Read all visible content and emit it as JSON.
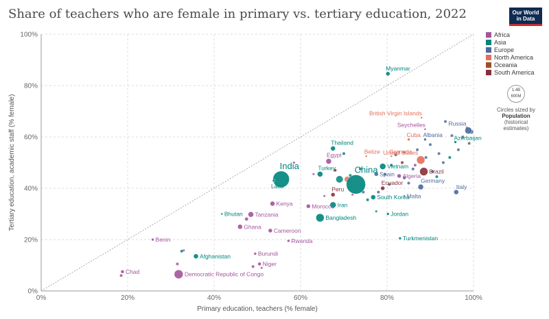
{
  "header": {
    "title": "Share of teachers who are female in primary vs. tertiary education, 2022",
    "logo_line1": "Our World",
    "logo_line2": "in Data"
  },
  "legend": {
    "items": [
      {
        "label": "Africa",
        "color": "#a2559c"
      },
      {
        "label": "Asia",
        "color": "#00847e"
      },
      {
        "label": "Europe",
        "color": "#4c6a9c"
      },
      {
        "label": "North America",
        "color": "#e56e5a"
      },
      {
        "label": "Oceania",
        "color": "#9a5129"
      },
      {
        "label": "South America",
        "color": "#883039"
      }
    ],
    "size_big": "1.4B",
    "size_small": "600M",
    "size_note_1": "Circles sized by",
    "size_note_2": "Population",
    "size_note_3": "(historical",
    "size_note_4": "estimates)"
  },
  "chart_data": {
    "type": "scatter",
    "title": "Share of teachers who are female in primary vs. tertiary education, 2022",
    "xlabel": "Primary education, teachers (% female)",
    "ylabel": "Tertiary education, academic staff (% female)",
    "xlim": [
      0,
      100
    ],
    "ylim": [
      0,
      100
    ],
    "xticks": [
      "0%",
      "20%",
      "40%",
      "60%",
      "80%",
      "100%"
    ],
    "yticks": [
      "0%",
      "20%",
      "40%",
      "60%",
      "80%",
      "100%"
    ],
    "grid": true,
    "legend_position": "right",
    "diagonal_line": true,
    "labeled_points": [
      {
        "name": "Myanmar",
        "region": "Asia",
        "x": 80.2,
        "y": 84.6,
        "r": 3
      },
      {
        "name": "British Virgin Islands",
        "region": "North America",
        "x": 88.0,
        "y": 67.5,
        "r": 1.5
      },
      {
        "name": "Seychelles",
        "region": "Africa",
        "x": 88.8,
        "y": 63.0,
        "r": 1.5
      },
      {
        "name": "Russia",
        "region": "Europe",
        "x": 98.8,
        "y": 62.5,
        "r": 5
      },
      {
        "name": "Cuba",
        "region": "North America",
        "x": 85.0,
        "y": 59.0,
        "r": 2
      },
      {
        "name": "Albania",
        "region": "Europe",
        "x": 88.8,
        "y": 59.0,
        "r": 2
      },
      {
        "name": "Azerbaijan",
        "region": "Asia",
        "x": 95.8,
        "y": 58.0,
        "r": 2
      },
      {
        "name": "Thailand",
        "region": "Asia",
        "x": 67.5,
        "y": 55.5,
        "r": 3.5
      },
      {
        "name": "Belize",
        "region": "North America",
        "x": 75.2,
        "y": 52.5,
        "r": 1.5
      },
      {
        "name": "Grenada",
        "region": "North America",
        "x": 81.0,
        "y": 52.5,
        "r": 1.5
      },
      {
        "name": "United States",
        "region": "North America",
        "x": 87.8,
        "y": 51.0,
        "r": 6
      },
      {
        "name": "Egypt",
        "region": "Africa",
        "x": 66.5,
        "y": 50.5,
        "r": 4
      },
      {
        "name": "Vietnam",
        "region": "Asia",
        "x": 79.0,
        "y": 48.5,
        "r": 4.5
      },
      {
        "name": "Brazil",
        "region": "South America",
        "x": 88.5,
        "y": 46.5,
        "r": 6
      },
      {
        "name": "India",
        "region": "Asia",
        "x": 55.5,
        "y": 43.5,
        "r": 12
      },
      {
        "name": "Turkey",
        "region": "Asia",
        "x": 64.5,
        "y": 45.5,
        "r": 4
      },
      {
        "name": "Spain",
        "region": "Europe",
        "x": 77.5,
        "y": 45.5,
        "r": 3
      },
      {
        "name": "Algeria",
        "region": "Africa",
        "x": 82.8,
        "y": 44.8,
        "r": 3
      },
      {
        "name": "China",
        "region": "Asia",
        "x": 72.8,
        "y": 41.5,
        "r": 14
      },
      {
        "name": "Laos",
        "region": "Asia",
        "x": 53.8,
        "y": 43.0,
        "r": 2
      },
      {
        "name": "Ecuador",
        "region": "South America",
        "x": 79.0,
        "y": 40.0,
        "r": 3
      },
      {
        "name": "Germany",
        "region": "Europe",
        "x": 87.8,
        "y": 40.5,
        "r": 4
      },
      {
        "name": "Italy",
        "region": "Europe",
        "x": 96.0,
        "y": 38.5,
        "r": 3.5
      },
      {
        "name": "Peru",
        "region": "South America",
        "x": 67.5,
        "y": 37.5,
        "r": 3
      },
      {
        "name": "South Korea",
        "region": "Asia",
        "x": 76.8,
        "y": 36.5,
        "r": 3.5
      },
      {
        "name": "Malta",
        "region": "Europe",
        "x": 84.0,
        "y": 37.0,
        "r": 1.5
      },
      {
        "name": "Iran",
        "region": "Asia",
        "x": 67.5,
        "y": 33.5,
        "r": 4.5
      },
      {
        "name": "Kenya",
        "region": "Africa",
        "x": 53.5,
        "y": 34.0,
        "r": 3.5
      },
      {
        "name": "Morocco",
        "region": "Africa",
        "x": 61.8,
        "y": 33.0,
        "r": 3
      },
      {
        "name": "Bhutan",
        "region": "Asia",
        "x": 41.8,
        "y": 30.0,
        "r": 1.5
      },
      {
        "name": "Tanzania",
        "region": "Africa",
        "x": 48.5,
        "y": 29.8,
        "r": 4
      },
      {
        "name": "Bangladesh",
        "region": "Asia",
        "x": 64.5,
        "y": 28.5,
        "r": 6
      },
      {
        "name": "Jordan",
        "region": "Asia",
        "x": 80.2,
        "y": 30.0,
        "r": 2
      },
      {
        "name": "Ghana",
        "region": "Africa",
        "x": 46.0,
        "y": 25.0,
        "r": 3.5
      },
      {
        "name": "Cameroon",
        "region": "Africa",
        "x": 53.0,
        "y": 23.5,
        "r": 3
      },
      {
        "name": "Rwanda",
        "region": "Africa",
        "x": 57.2,
        "y": 19.5,
        "r": 2
      },
      {
        "name": "Turkmenistan",
        "region": "Asia",
        "x": 83.0,
        "y": 20.5,
        "r": 2
      },
      {
        "name": "Benin",
        "region": "Africa",
        "x": 25.8,
        "y": 20.0,
        "r": 2
      },
      {
        "name": "Burundi",
        "region": "Africa",
        "x": 49.5,
        "y": 14.5,
        "r": 2
      },
      {
        "name": "Afghanistan",
        "region": "Asia",
        "x": 35.8,
        "y": 13.5,
        "r": 3.5
      },
      {
        "name": "Niger",
        "region": "Africa",
        "x": 50.5,
        "y": 10.5,
        "r": 2.5
      },
      {
        "name": "Chad",
        "region": "Africa",
        "x": 18.8,
        "y": 7.5,
        "r": 2.5
      },
      {
        "name": "Democratic Republic of Congo",
        "region": "Africa",
        "x": 31.8,
        "y": 6.5,
        "r": 6.5
      }
    ],
    "unlabeled_points": [
      {
        "region": "Africa",
        "x": 18.5,
        "y": 6.0,
        "r": 2
      },
      {
        "region": "Africa",
        "x": 31.5,
        "y": 10.5,
        "r": 2
      },
      {
        "region": "Asia",
        "x": 32.5,
        "y": 15.5,
        "r": 2
      },
      {
        "region": "Africa",
        "x": 33.0,
        "y": 15.8,
        "r": 1.5
      },
      {
        "region": "Africa",
        "x": 47.5,
        "y": 28.0,
        "r": 2.5
      },
      {
        "region": "Africa",
        "x": 49.0,
        "y": 9.5,
        "r": 2
      },
      {
        "region": "Africa",
        "x": 51.0,
        "y": 9.0,
        "r": 1.5
      },
      {
        "region": "Africa",
        "x": 58.5,
        "y": 50.0,
        "r": 1.5
      },
      {
        "region": "Africa",
        "x": 65.5,
        "y": 37.0,
        "r": 1.5
      },
      {
        "region": "South America",
        "x": 68.0,
        "y": 47.0,
        "r": 2
      },
      {
        "region": "Asia",
        "x": 70.0,
        "y": 53.5,
        "r": 2
      },
      {
        "region": "North America",
        "x": 70.8,
        "y": 43.5,
        "r": 4
      },
      {
        "region": "Asia",
        "x": 69.0,
        "y": 43.5,
        "r": 5
      },
      {
        "region": "Asia",
        "x": 73.8,
        "y": 47.5,
        "r": 2
      },
      {
        "region": "Europe",
        "x": 74.5,
        "y": 38.5,
        "r": 2
      },
      {
        "region": "Asia",
        "x": 75.5,
        "y": 35.5,
        "r": 2
      },
      {
        "region": "Asia",
        "x": 77.5,
        "y": 31.0,
        "r": 1.5
      },
      {
        "region": "Europe",
        "x": 78.0,
        "y": 38.5,
        "r": 2
      },
      {
        "region": "Europe",
        "x": 79.5,
        "y": 45.5,
        "r": 2
      },
      {
        "region": "Europe",
        "x": 80.5,
        "y": 41.5,
        "r": 2
      },
      {
        "region": "Asia",
        "x": 81.0,
        "y": 49.0,
        "r": 2
      },
      {
        "region": "Europe",
        "x": 82.0,
        "y": 53.0,
        "r": 2
      },
      {
        "region": "South America",
        "x": 83.5,
        "y": 50.0,
        "r": 2
      },
      {
        "region": "Europe",
        "x": 84.0,
        "y": 44.0,
        "r": 2
      },
      {
        "region": "Europe",
        "x": 85.0,
        "y": 42.0,
        "r": 2
      },
      {
        "region": "Europe",
        "x": 86.0,
        "y": 47.5,
        "r": 2
      },
      {
        "region": "Africa",
        "x": 86.5,
        "y": 49.0,
        "r": 2
      },
      {
        "region": "Europe",
        "x": 87.0,
        "y": 55.0,
        "r": 2
      },
      {
        "region": "Europe",
        "x": 89.0,
        "y": 52.0,
        "r": 2
      },
      {
        "region": "Europe",
        "x": 90.0,
        "y": 57.0,
        "r": 2
      },
      {
        "region": "Europe",
        "x": 90.5,
        "y": 46.5,
        "r": 2
      },
      {
        "region": "Asia",
        "x": 91.5,
        "y": 44.5,
        "r": 2
      },
      {
        "region": "Europe",
        "x": 92.0,
        "y": 53.5,
        "r": 2
      },
      {
        "region": "Europe",
        "x": 93.0,
        "y": 50.0,
        "r": 2
      },
      {
        "region": "Europe",
        "x": 93.5,
        "y": 66.0,
        "r": 2
      },
      {
        "region": "Asia",
        "x": 94.5,
        "y": 52.0,
        "r": 2
      },
      {
        "region": "Europe",
        "x": 96.5,
        "y": 55.0,
        "r": 2
      },
      {
        "region": "Europe",
        "x": 97.5,
        "y": 60.0,
        "r": 2
      },
      {
        "region": "Europe",
        "x": 98.5,
        "y": 63.5,
        "r": 2
      },
      {
        "region": "Europe",
        "x": 99.0,
        "y": 57.5,
        "r": 2
      },
      {
        "region": "Europe",
        "x": 95.0,
        "y": 60.5,
        "r": 2
      },
      {
        "region": "Europe",
        "x": 99.5,
        "y": 62.0,
        "r": 3
      },
      {
        "region": "Asia",
        "x": 84.0,
        "y": 54.0,
        "r": 1.5
      },
      {
        "region": "Africa",
        "x": 63.0,
        "y": 45.5,
        "r": 1.5
      },
      {
        "region": "Asia",
        "x": 71.5,
        "y": 45.0,
        "r": 2
      },
      {
        "region": "Africa",
        "x": 72.0,
        "y": 37.5,
        "r": 1.5
      }
    ]
  }
}
